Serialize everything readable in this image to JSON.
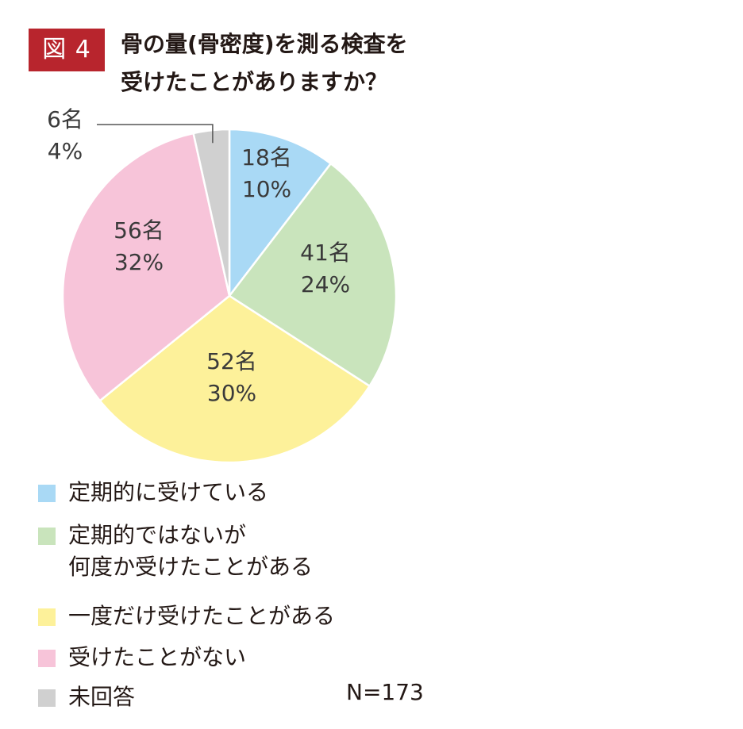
{
  "figure": {
    "badge": "図 4",
    "title_line1": "骨の量(骨密度)を測る検査を",
    "title_line2": "受けたことがありますか？",
    "n_label": "N=173"
  },
  "chart_data": {
    "type": "pie",
    "total": 173,
    "slices": [
      {
        "name": "定期的に受けている",
        "count_label": "18名",
        "percent_label": "10%",
        "value": 18,
        "color": "#a9d9f5"
      },
      {
        "name": "定期的ではないが何度か受けたことがある",
        "count_label": "41名",
        "percent_label": "24%",
        "value": 41,
        "color": "#c9e4bc"
      },
      {
        "name": "一度だけ受けたことがある",
        "count_label": "52名",
        "percent_label": "30%",
        "value": 52,
        "color": "#fdf19a"
      },
      {
        "name": "受けたことがない",
        "count_label": "56名",
        "percent_label": "32%",
        "value": 56,
        "color": "#f7c4d9"
      },
      {
        "name": "未回答",
        "count_label": "6名",
        "percent_label": "4%",
        "value": 6,
        "color": "#d0d0d0"
      }
    ]
  },
  "legend": {
    "items": [
      {
        "lines": [
          "定期的に受けている"
        ]
      },
      {
        "lines": [
          "定期的ではないが",
          "何度か受けたことがある"
        ]
      },
      {
        "lines": [
          "一度だけ受けたことがある"
        ]
      },
      {
        "lines": [
          "受けたことがない"
        ]
      },
      {
        "lines": [
          "未回答"
        ]
      }
    ]
  }
}
